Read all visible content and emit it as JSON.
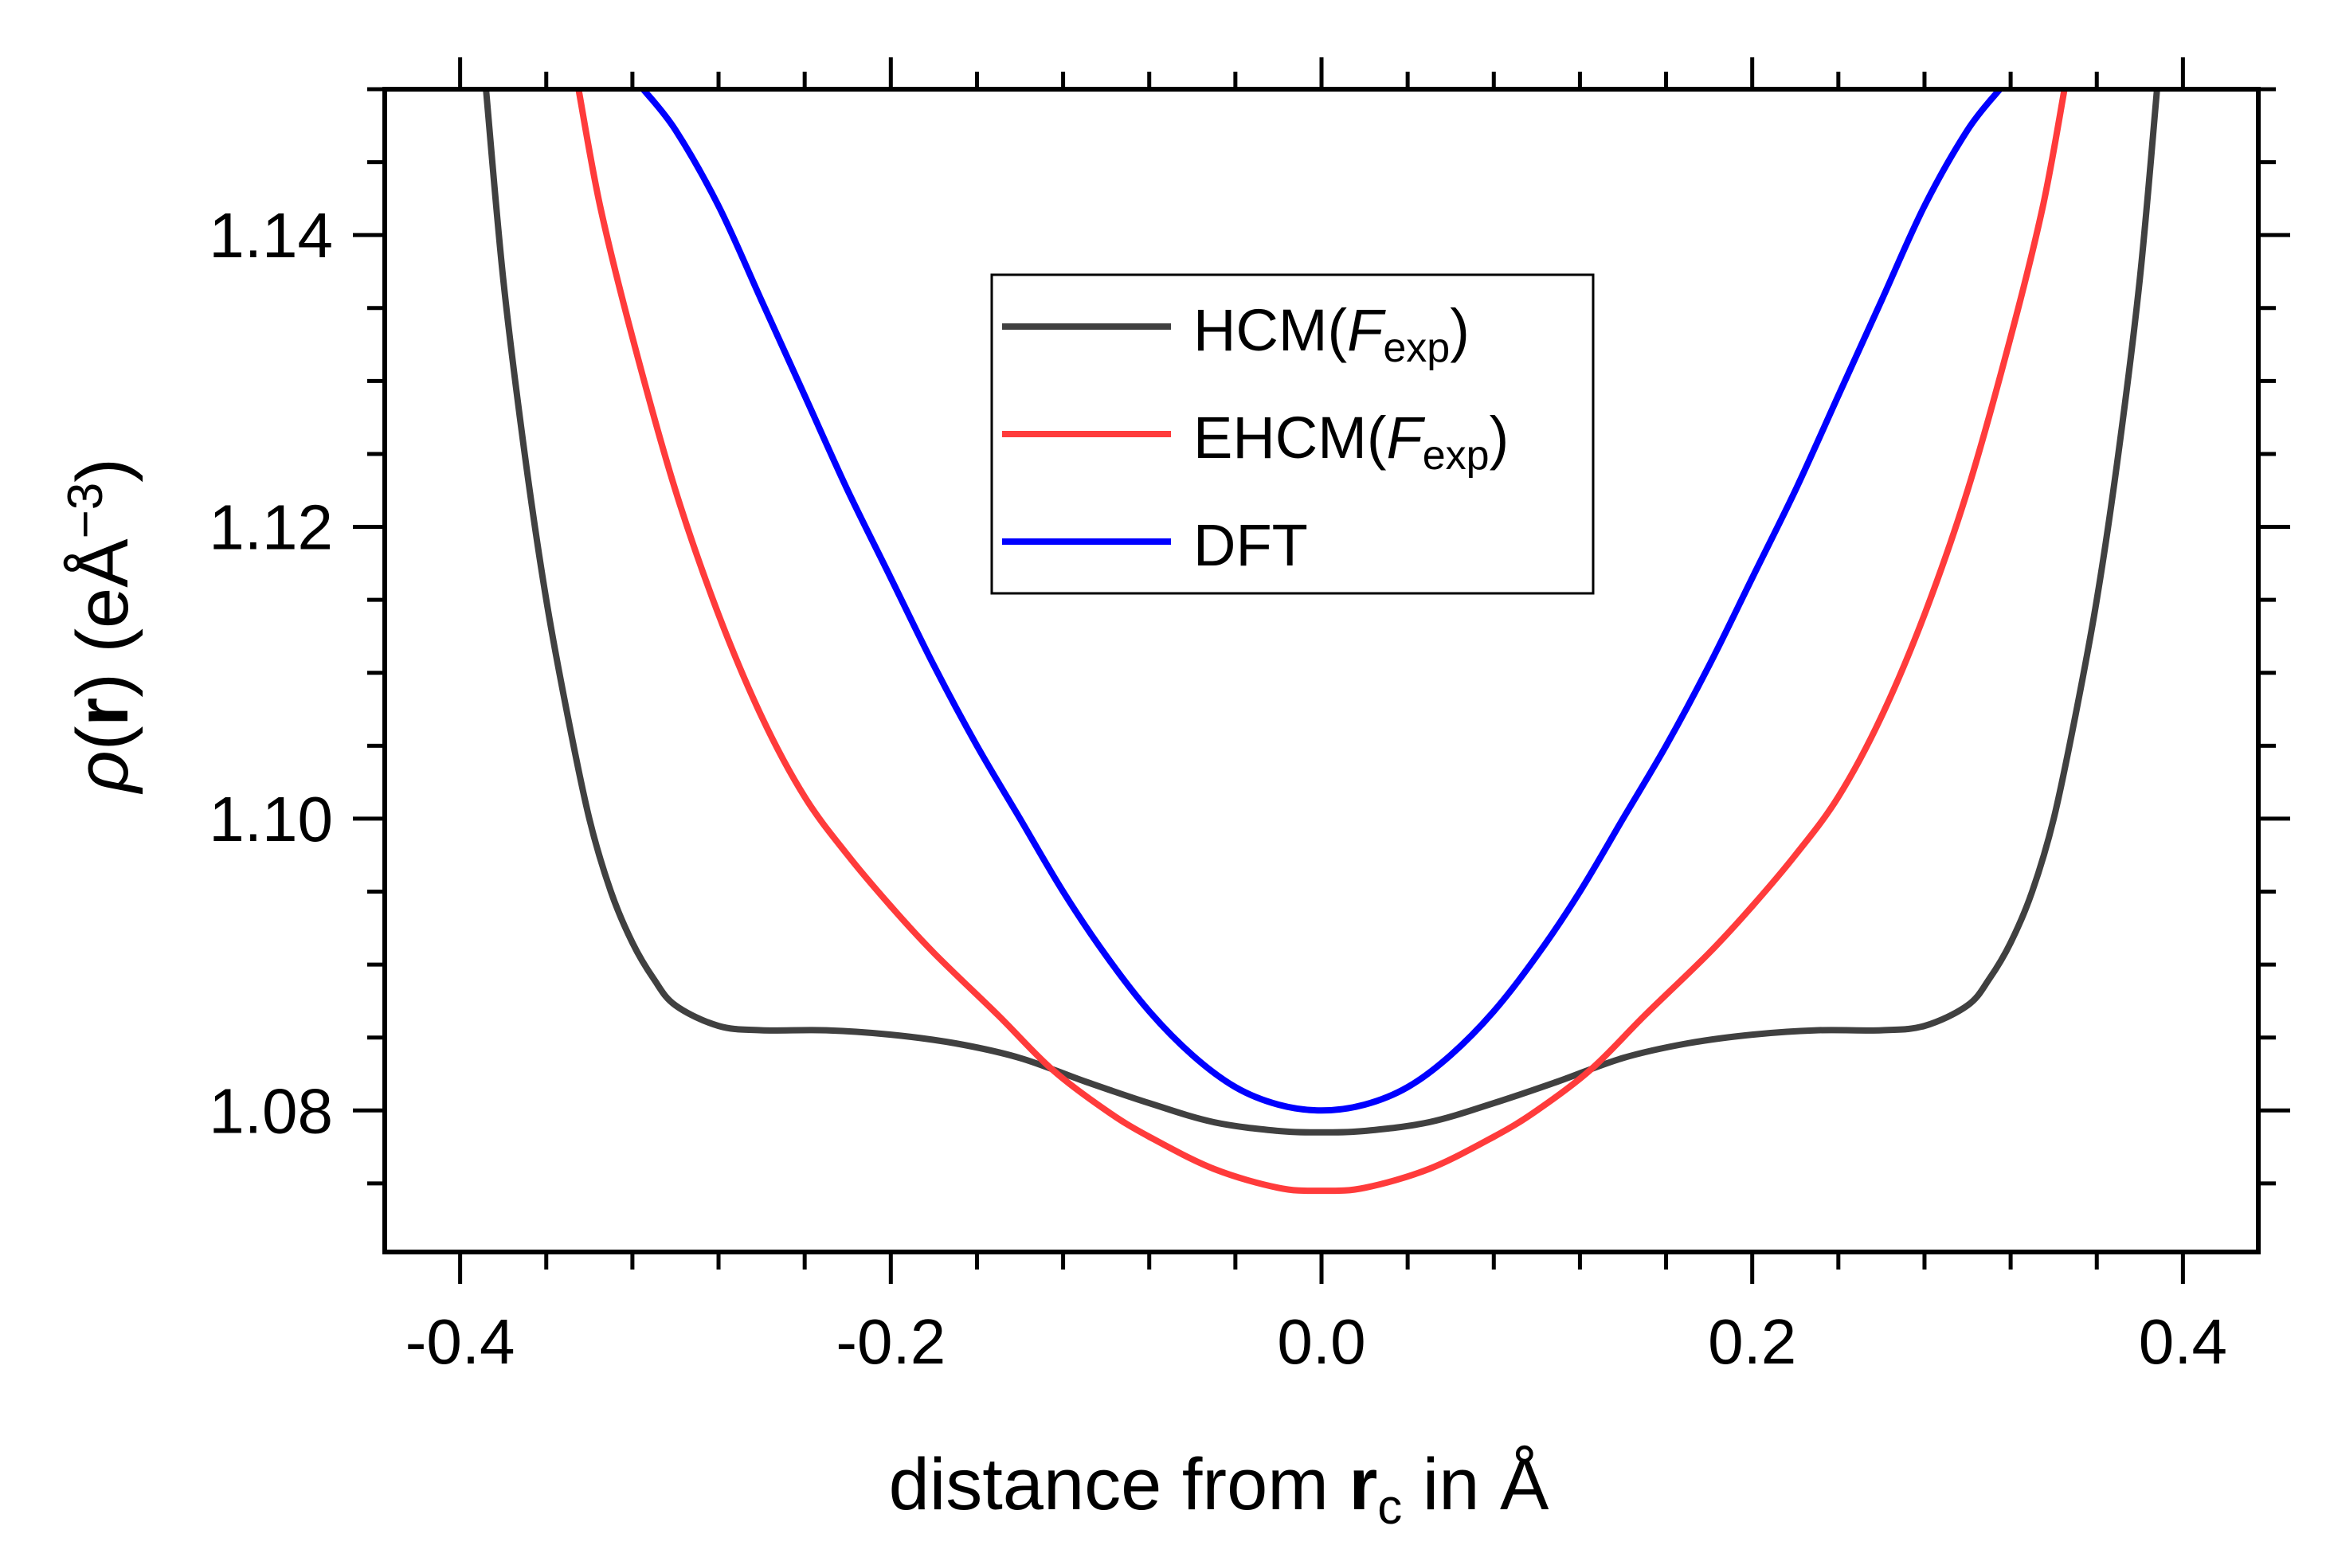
{
  "chart_data": {
    "type": "line",
    "title": "",
    "xlabel": {
      "prefix": "distance from ",
      "bold": "r",
      "sub": "c",
      "suffix": " in Å"
    },
    "ylabel": {
      "rho": "ρ",
      "open": "(",
      "bold": "r",
      "close": ")",
      "unit": " (eÅ",
      "sup": "−3",
      "end": ")"
    },
    "xlim": [
      -0.435,
      0.435
    ],
    "ylim": [
      1.0703,
      1.15
    ],
    "x_ticks": [
      -0.4,
      -0.2,
      0.0,
      0.2,
      0.4
    ],
    "x_tick_labels": [
      "-0.4",
      "-0.2",
      "0.0",
      "0.2",
      "0.4"
    ],
    "x_minor_step": 0.04,
    "y_ticks": [
      1.08,
      1.1,
      1.12,
      1.14
    ],
    "y_tick_labels": [
      "1.08",
      "1.10",
      "1.12",
      "1.14"
    ],
    "y_minor_step": 0.005,
    "grid": false,
    "legend": {
      "position": "upper-center",
      "entries": [
        {
          "main": "HCM(",
          "italic": "F",
          "sub": "exp",
          "close": ")"
        },
        {
          "main": "EHCM(",
          "italic": "F",
          "sub": "exp",
          "close": ")"
        },
        {
          "main": "DFT",
          "italic": "",
          "sub": "",
          "close": ""
        }
      ]
    },
    "series": [
      {
        "name": "HCM(Fexp)",
        "color": "#404040",
        "points": [
          [
            0.0,
            1.0785
          ],
          [
            0.02,
            1.0786
          ],
          [
            0.05,
            1.0792
          ],
          [
            0.08,
            1.0805
          ],
          [
            0.11,
            1.082
          ],
          [
            0.14,
            1.0836
          ],
          [
            0.17,
            1.0846
          ],
          [
            0.2,
            1.0852
          ],
          [
            0.23,
            1.0855
          ],
          [
            0.26,
            1.0855
          ],
          [
            0.28,
            1.0858
          ],
          [
            0.3,
            1.0872
          ],
          [
            0.31,
            1.089
          ],
          [
            0.32,
            1.0915
          ],
          [
            0.33,
            1.095
          ],
          [
            0.34,
            1.1
          ],
          [
            0.35,
            1.107
          ],
          [
            0.36,
            1.115
          ],
          [
            0.37,
            1.125
          ],
          [
            0.38,
            1.137
          ],
          [
            0.388,
            1.15
          ]
        ]
      },
      {
        "name": "EHCM(Fexp)",
        "color": "#ff3b3b",
        "points": [
          [
            0.0,
            1.0745
          ],
          [
            0.02,
            1.0747
          ],
          [
            0.05,
            1.076
          ],
          [
            0.08,
            1.0782
          ],
          [
            0.1,
            1.08
          ],
          [
            0.125,
            1.0828
          ],
          [
            0.15,
            1.0865
          ],
          [
            0.18,
            1.0908
          ],
          [
            0.2,
            1.094
          ],
          [
            0.22,
            1.0975
          ],
          [
            0.24,
            1.1015
          ],
          [
            0.26,
            1.107
          ],
          [
            0.28,
            1.114
          ],
          [
            0.3,
            1.1225
          ],
          [
            0.32,
            1.133
          ],
          [
            0.335,
            1.142
          ],
          [
            0.345,
            1.15
          ]
        ]
      },
      {
        "name": "DFT",
        "color": "#0000ff",
        "points": [
          [
            0.0,
            1.08
          ],
          [
            0.02,
            1.0804
          ],
          [
            0.04,
            1.0816
          ],
          [
            0.06,
            1.0838
          ],
          [
            0.08,
            1.0868
          ],
          [
            0.1,
            1.0906
          ],
          [
            0.12,
            1.095
          ],
          [
            0.14,
            1.1
          ],
          [
            0.16,
            1.105
          ],
          [
            0.18,
            1.1105
          ],
          [
            0.2,
            1.1165
          ],
          [
            0.22,
            1.1225
          ],
          [
            0.24,
            1.129
          ],
          [
            0.26,
            1.1355
          ],
          [
            0.28,
            1.142
          ],
          [
            0.3,
            1.1472
          ],
          [
            0.315,
            1.15
          ]
        ]
      }
    ],
    "symmetric_about_zero": true
  }
}
